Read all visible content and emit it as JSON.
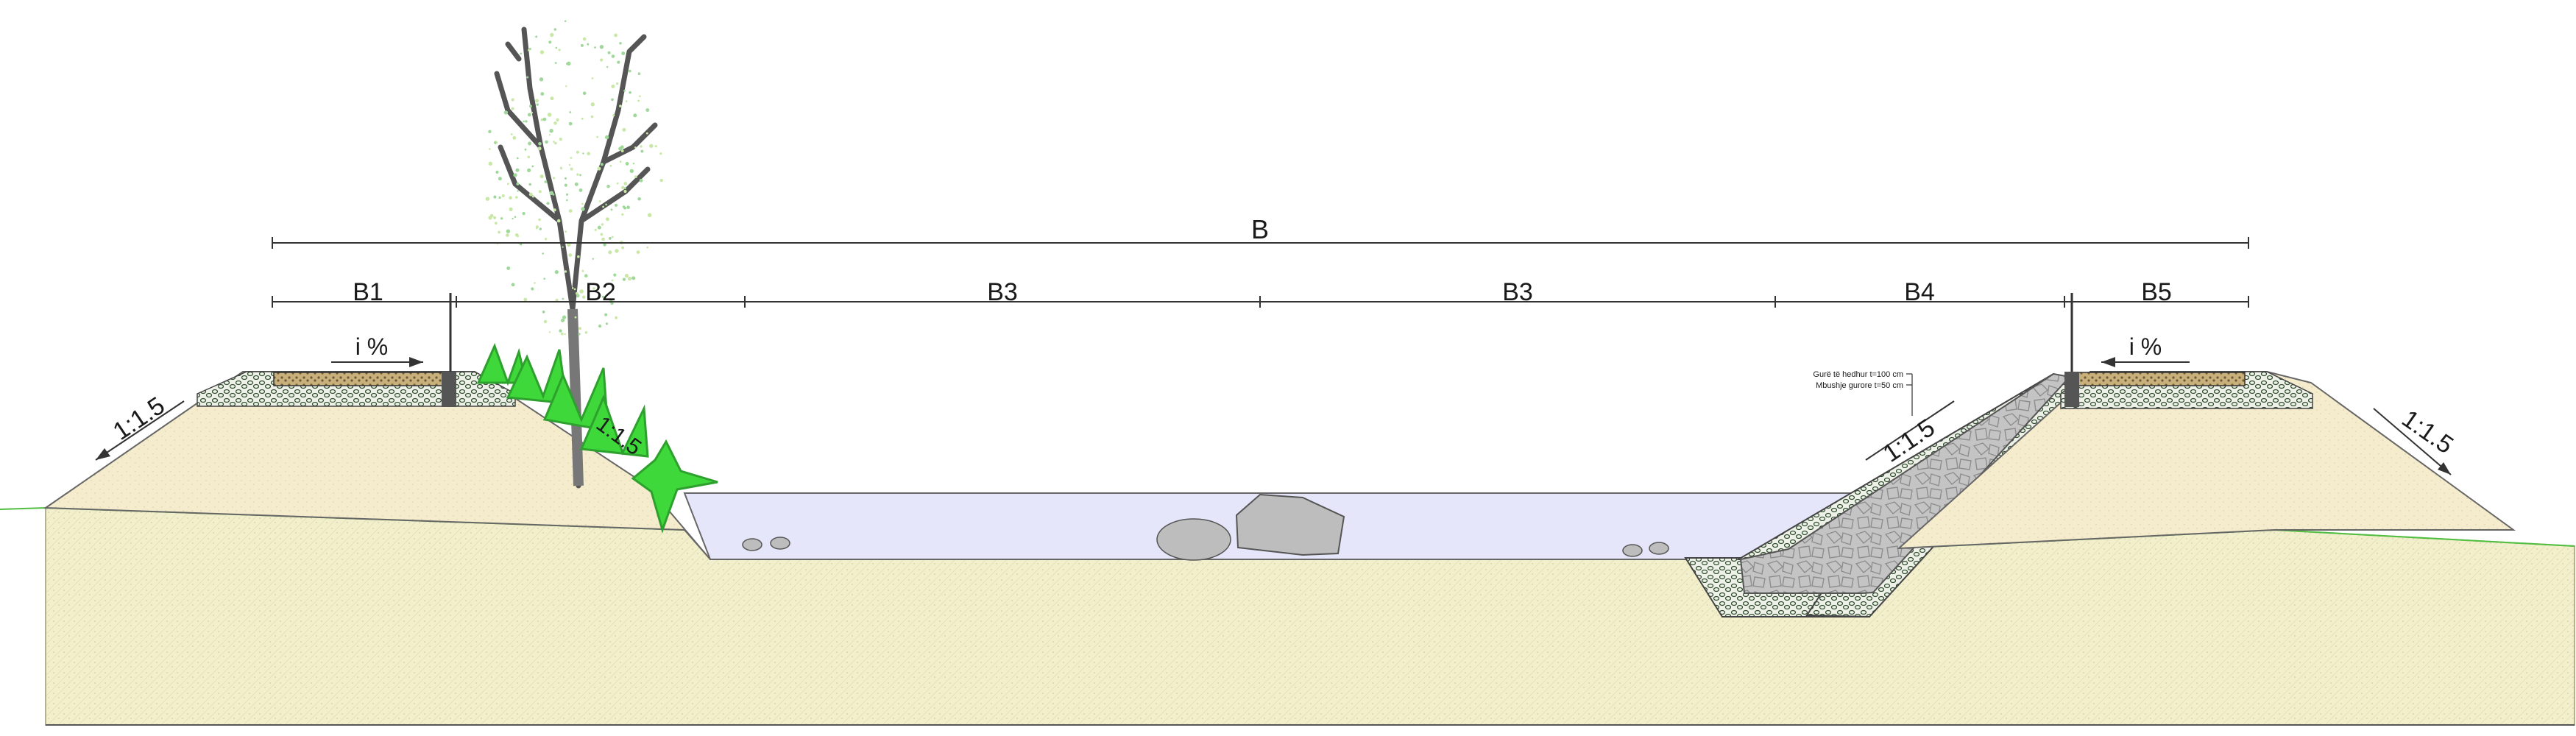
{
  "drawing": {
    "dimensions": {
      "overall": "B",
      "segments": [
        "B1",
        "B2",
        "B3",
        "B3",
        "B4",
        "B5"
      ]
    },
    "slope_labels": {
      "left_outer": "1:1.5",
      "left_inner": "1:1.5",
      "right_inner": "1:1.5",
      "right_outer": "1:1.5"
    },
    "crossfall": {
      "left": "i %",
      "right": "i %"
    },
    "lining_note": {
      "line1": "Gurë të hedhur t=100 cm",
      "line2": "Mbushje gurore t=50 cm"
    }
  },
  "colors": {
    "ground": "#f2efcc",
    "embankment": "#f5eccd",
    "water": "#e6e6fb",
    "vegetation": "#3fd83a",
    "ground_line": "#4fbf3f",
    "stone": "#bdbdbd"
  }
}
